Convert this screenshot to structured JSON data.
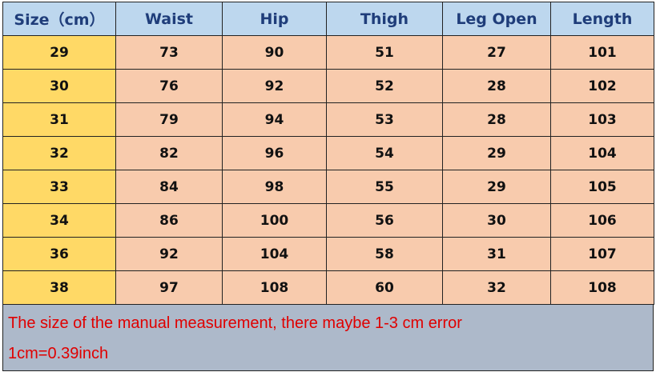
{
  "table": {
    "header": [
      "Size（cm）",
      "Waist",
      "Hip",
      "Thigh",
      "Leg Open",
      "Length"
    ],
    "rows": [
      [
        29,
        73,
        90,
        51,
        27,
        101
      ],
      [
        30,
        76,
        92,
        52,
        28,
        102
      ],
      [
        31,
        79,
        94,
        53,
        28,
        103
      ],
      [
        32,
        82,
        96,
        54,
        29,
        104
      ],
      [
        33,
        84,
        98,
        55,
        29,
        105
      ],
      [
        34,
        86,
        100,
        56,
        30,
        106
      ],
      [
        36,
        92,
        104,
        58,
        31,
        107
      ],
      [
        38,
        97,
        108,
        60,
        32,
        108
      ]
    ]
  },
  "notes": [
    "The size of the manual measurement, there maybe 1-3 cm error",
    "1cm=0.39inch"
  ]
}
